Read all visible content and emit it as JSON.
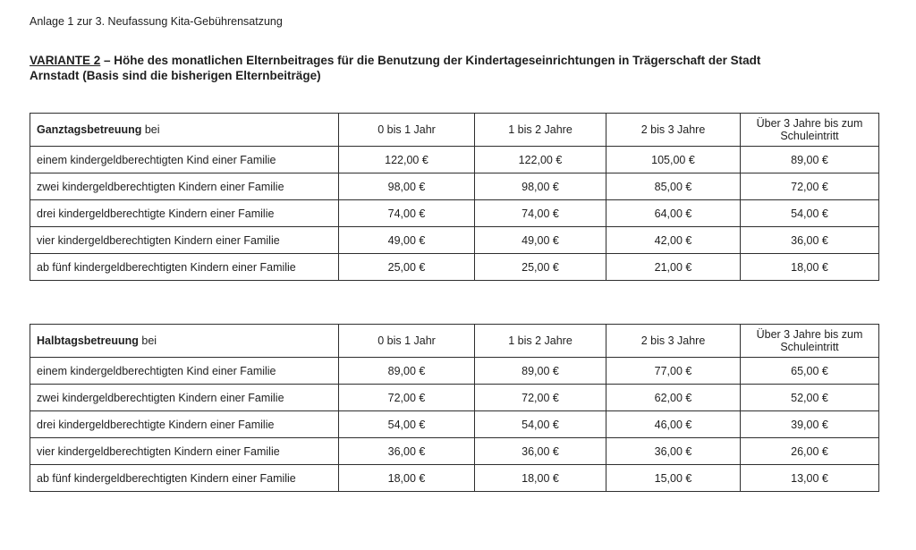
{
  "document": {
    "header": "Anlage 1 zur 3. Neufassung Kita-Gebührensatzung",
    "title": {
      "emphasis": "VARIANTE 2",
      "line1_rest": "– Höhe des monatlichen Elternbeitrages für die Benutzung der Kindertageseinrichtungen in Trägerschaft der Stadt",
      "line2": "Arnstadt (Basis sind die bisherigen Elternbeiträge)"
    }
  },
  "colors": {
    "text": "#1f1f1f",
    "border": "#2e2e2e",
    "background": "#ffffff"
  },
  "tables": [
    {
      "name": "Ganztagsbetreuung",
      "header_term": "Ganztagsbetreuung",
      "header_suffix": "bei",
      "columns": [
        "0 bis 1 Jahr",
        "1 bis 2 Jahre",
        "2 bis 3 Jahre",
        "Über 3 Jahre bis zum Schuleintritt"
      ],
      "rows": [
        {
          "label": "einem kindergeldberechtigten Kind einer Familie",
          "values": [
            "122,00 €",
            "122,00 €",
            "105,00 €",
            "89,00 €"
          ]
        },
        {
          "label": "zwei kindergeldberechtigten Kindern einer Familie",
          "values": [
            "98,00 €",
            "98,00 €",
            "85,00 €",
            "72,00 €"
          ]
        },
        {
          "label": "drei kindergeldberechtigte Kindern einer Familie",
          "values": [
            "74,00 €",
            "74,00 €",
            "64,00 €",
            "54,00 €"
          ]
        },
        {
          "label": "vier kindergeldberechtigten Kindern einer Familie",
          "values": [
            "49,00 €",
            "49,00 €",
            "42,00 €",
            "36,00 €"
          ]
        },
        {
          "label": "ab fünf kindergeldberechtigten Kindern einer Familie",
          "values": [
            "25,00 €",
            "25,00 €",
            "21,00 €",
            "18,00 €"
          ]
        }
      ]
    },
    {
      "name": "Halbtagsbetreuung",
      "header_term": "Halbtagsbetreuung",
      "header_suffix": "bei",
      "columns": [
        "0 bis 1 Jahr",
        "1 bis 2 Jahre",
        "2 bis 3 Jahre",
        "Über 3 Jahre bis zum Schuleintritt"
      ],
      "rows": [
        {
          "label": "einem kindergeldberechtigten Kind einer Familie",
          "values": [
            "89,00 €",
            "89,00 €",
            "77,00 €",
            "65,00 €"
          ]
        },
        {
          "label": "zwei kindergeldberechtigten Kindern einer Familie",
          "values": [
            "72,00 €",
            "72,00 €",
            "62,00 €",
            "52,00 €"
          ]
        },
        {
          "label": "drei kindergeldberechtigte Kindern einer Familie",
          "values": [
            "54,00 €",
            "54,00 €",
            "46,00 €",
            "39,00 €"
          ]
        },
        {
          "label": "vier kindergeldberechtigten Kindern einer Familie",
          "values": [
            "36,00 €",
            "36,00 €",
            "36,00 €",
            "26,00 €"
          ]
        },
        {
          "label": "ab fünf kindergeldberechtigten Kindern einer Familie",
          "values": [
            "18,00 €",
            "18,00 €",
            "15,00 €",
            "13,00 €"
          ]
        }
      ]
    }
  ]
}
